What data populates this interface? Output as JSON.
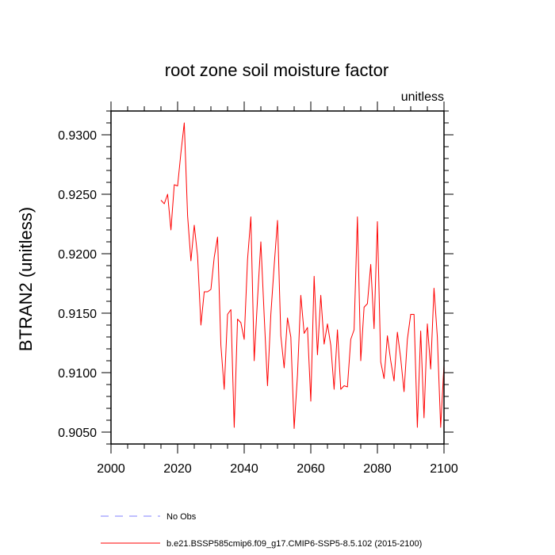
{
  "chart_data": {
    "type": "line",
    "title": "root zone soil moisture factor",
    "units_label": "unitless",
    "xlabel": "",
    "ylabel": "BTRAN2  (unitless)",
    "xlim": [
      2000,
      2100
    ],
    "ylim": [
      0.904,
      0.932
    ],
    "x_ticks": [
      2000,
      2020,
      2040,
      2060,
      2080,
      2100
    ],
    "y_ticks": [
      0.905,
      0.91,
      0.915,
      0.92,
      0.925,
      0.93
    ],
    "y_tick_labels": [
      "0.9050",
      "0.9100",
      "0.9150",
      "0.9200",
      "0.9250",
      "0.9300"
    ],
    "series": [
      {
        "name": "b.e21.BSSP585cmip6.f09_g17.CMIP6-SSP5-8.5.102 (2015-2100)",
        "color": "#ff0000",
        "x_start": 2015,
        "values": [
          0.9245,
          0.9242,
          0.925,
          0.922,
          0.9258,
          0.9257,
          0.9285,
          0.931,
          0.9232,
          0.9194,
          0.9224,
          0.9198,
          0.914,
          0.9168,
          0.9168,
          0.917,
          0.9197,
          0.9214,
          0.9123,
          0.9086,
          0.9149,
          0.9153,
          0.9054,
          0.9145,
          0.9142,
          0.9128,
          0.9195,
          0.9231,
          0.911,
          0.9162,
          0.921,
          0.9148,
          0.9089,
          0.9149,
          0.919,
          0.9228,
          0.9131,
          0.9104,
          0.9146,
          0.913,
          0.9053,
          0.9098,
          0.9165,
          0.9133,
          0.9138,
          0.9076,
          0.9181,
          0.9115,
          0.9165,
          0.9124,
          0.9141,
          0.9123,
          0.9086,
          0.9136,
          0.9086,
          0.9089,
          0.9088,
          0.9128,
          0.9136,
          0.9231,
          0.911,
          0.9155,
          0.9158,
          0.9191,
          0.9137,
          0.9227,
          0.9109,
          0.9095,
          0.9131,
          0.911,
          0.9093,
          0.9134,
          0.9112,
          0.9084,
          0.9128,
          0.9149,
          0.9149,
          0.9054,
          0.9135,
          0.9062,
          0.9141,
          0.9103,
          0.9171,
          0.913,
          0.9054,
          0.9107
        ]
      },
      {
        "name": "No Obs",
        "color": "#8080ff",
        "dashed": true,
        "values": []
      }
    ],
    "legend": [
      "No Obs",
      "b.e21.BSSP585cmip6.f09_g17.CMIP6-SSP5-8.5.102 (2015-2100)"
    ],
    "legend_position": "bottom"
  }
}
